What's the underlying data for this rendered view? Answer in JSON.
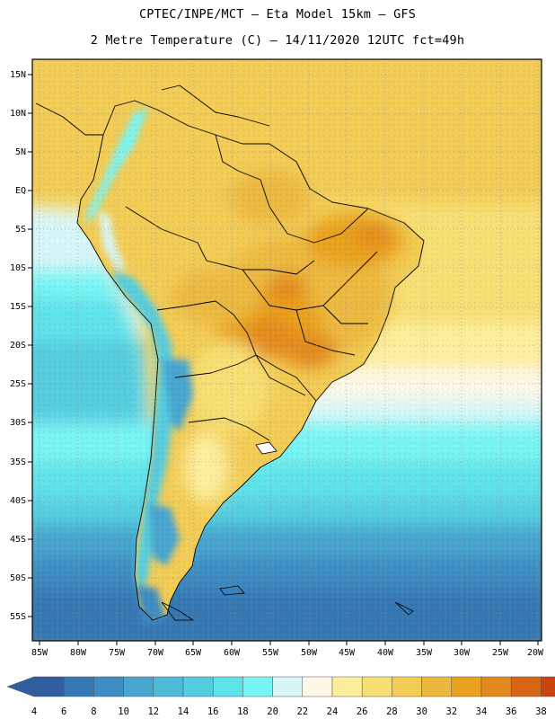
{
  "header": {
    "line1": "CPTEC/INPE/MCT —  Eta Model 15km — GFS",
    "line2": "2 Metre Temperature (C) — 14/11/2020 12UTC fct=49h"
  },
  "map": {
    "lat_labels": [
      "15N",
      "10N",
      "5N",
      "EQ",
      "5S",
      "10S",
      "15S",
      "20S",
      "25S",
      "30S",
      "35S",
      "40S",
      "45S",
      "50S",
      "55S"
    ],
    "lon_labels": [
      "85W",
      "80W",
      "75W",
      "70W",
      "65W",
      "60W",
      "55W",
      "50W",
      "45W",
      "40W",
      "35W",
      "30W",
      "25W",
      "20W"
    ]
  },
  "legend": {
    "values": [
      "4",
      "6",
      "8",
      "10",
      "12",
      "14",
      "16",
      "18",
      "20",
      "22",
      "24",
      "26",
      "28",
      "30",
      "32",
      "34",
      "36",
      "38"
    ],
    "colors": [
      "#2f5f9f",
      "#3577b3",
      "#3e8cc2",
      "#47a5cf",
      "#4fb9d9",
      "#55cde0",
      "#5ee3ea",
      "#79f4f4",
      "#d7f6f8",
      "#fdf8e6",
      "#fdee9d",
      "#f7df73",
      "#f2cc55",
      "#ecb93f",
      "#e9a21f",
      "#e38a1f",
      "#d86514",
      "#c8440c"
    ],
    "low_color": "#2f5f9f",
    "high_color": "#b8380a"
  }
}
